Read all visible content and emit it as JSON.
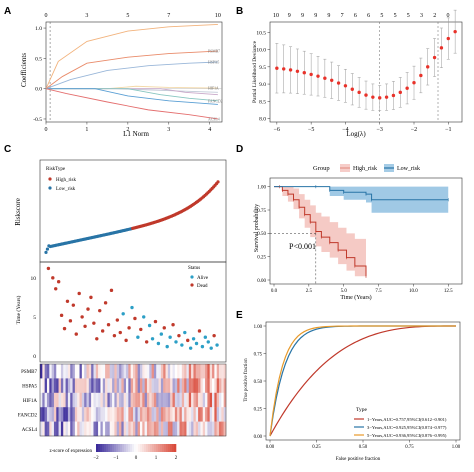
{
  "panel_labels": [
    "A",
    "B",
    "C",
    "D",
    "E"
  ],
  "chart_data": [
    {
      "panel": "A",
      "type": "line",
      "xlabel": "L1 Norm",
      "ylabel": "Coefficients",
      "x_ticks": [
        "0",
        "1",
        "2",
        "3",
        "4"
      ],
      "top_ticks": [
        "0",
        "3",
        "5",
        "7",
        "10"
      ],
      "y_ticks": [
        "-0.5",
        "0.0",
        "0.5",
        "1.0"
      ],
      "xlim": [
        0,
        4.3
      ],
      "ylim": [
        -0.55,
        1.1
      ],
      "vline_x": 0.1,
      "series": [
        {
          "name": "",
          "color": "#f2b37d",
          "points": [
            [
              0,
              0
            ],
            [
              0.3,
              0.45
            ],
            [
              1,
              0.78
            ],
            [
              2,
              0.95
            ],
            [
              3,
              1.02
            ],
            [
              4.2,
              1.06
            ]
          ]
        },
        {
          "name": "",
          "color": "#e98b6a",
          "points": [
            [
              0,
              0
            ],
            [
              0.4,
              0.2
            ],
            [
              1,
              0.42
            ],
            [
              2,
              0.52
            ],
            [
              3,
              0.58
            ],
            [
              4.2,
              0.62
            ]
          ]
        },
        {
          "name": "",
          "color": "#9ab7d9",
          "points": [
            [
              0,
              0
            ],
            [
              0.6,
              0.15
            ],
            [
              1.5,
              0.3
            ],
            [
              2.5,
              0.38
            ],
            [
              3.5,
              0.42
            ],
            [
              4.2,
              0.44
            ]
          ]
        },
        {
          "name": "",
          "color": "#f4d9a8",
          "points": [
            [
              0,
              0
            ],
            [
              1.5,
              0
            ],
            [
              2.2,
              0.04
            ],
            [
              3,
              0.02
            ],
            [
              4.2,
              0.01
            ]
          ]
        },
        {
          "name": "",
          "color": "#c3cbd8",
          "points": [
            [
              0,
              0
            ],
            [
              1.7,
              0
            ],
            [
              2.5,
              -0.02
            ],
            [
              3.3,
              -0.04
            ],
            [
              4.2,
              -0.06
            ]
          ]
        },
        {
          "name": "",
          "color": "#c9a9c9",
          "points": [
            [
              0,
              0
            ],
            [
              2.8,
              0
            ],
            [
              3.4,
              -0.06
            ],
            [
              4.2,
              -0.1
            ]
          ]
        },
        {
          "name": "",
          "color": "#88c6c0",
          "points": [
            [
              0,
              0
            ],
            [
              2,
              0
            ],
            [
              2.8,
              -0.1
            ],
            [
              3.5,
              -0.16
            ],
            [
              4.2,
              -0.2
            ]
          ]
        },
        {
          "name": "",
          "color": "#5a9fd4",
          "points": [
            [
              0,
              0
            ],
            [
              1.2,
              0
            ],
            [
              2,
              -0.12
            ],
            [
              3,
              -0.2
            ],
            [
              4.2,
              -0.26
            ]
          ]
        },
        {
          "name": "",
          "color": "#e46f6f",
          "points": [
            [
              0,
              0
            ],
            [
              0.5,
              -0.08
            ],
            [
              1.5,
              -0.22
            ],
            [
              2.5,
              -0.35
            ],
            [
              3.5,
              -0.43
            ],
            [
              4.2,
              -0.5
            ]
          ]
        }
      ],
      "right_labels": [
        "PSMB7",
        "HSPA5",
        "HIF1A",
        "FANCD2",
        "ACSL4"
      ]
    },
    {
      "panel": "B",
      "type": "scatter",
      "xlabel": "Log(λ)",
      "ylabel": "Partial Likelihood Deviance",
      "x_ticks": [
        "-6",
        "-5",
        "-4",
        "-3",
        "-2",
        "-1"
      ],
      "y_ticks": [
        "8.0",
        "8.5",
        "9.0",
        "9.5",
        "10.0",
        "10.5"
      ],
      "top_ticks": [
        "10",
        "9",
        "9",
        "9",
        "9",
        "7",
        "6",
        "6",
        "5",
        "5",
        "5",
        "3",
        "2",
        "0"
      ],
      "xlim": [
        -6.2,
        -0.6
      ],
      "ylim": [
        7.9,
        10.8
      ],
      "vlines": [
        -3.0,
        -1.3
      ],
      "points": [
        [
          -6.0,
          9.46
        ],
        [
          -5.8,
          9.44
        ],
        [
          -5.6,
          9.41
        ],
        [
          -5.4,
          9.37
        ],
        [
          -5.2,
          9.33
        ],
        [
          -5.0,
          9.28
        ],
        [
          -4.8,
          9.23
        ],
        [
          -4.6,
          9.17
        ],
        [
          -4.4,
          9.11
        ],
        [
          -4.2,
          9.03
        ],
        [
          -4.0,
          8.95
        ],
        [
          -3.8,
          8.85
        ],
        [
          -3.6,
          8.76
        ],
        [
          -3.4,
          8.68
        ],
        [
          -3.2,
          8.62
        ],
        [
          -3.0,
          8.6
        ],
        [
          -2.8,
          8.62
        ],
        [
          -2.6,
          8.67
        ],
        [
          -2.4,
          8.76
        ],
        [
          -2.2,
          8.88
        ],
        [
          -2.0,
          9.04
        ],
        [
          -1.8,
          9.25
        ],
        [
          -1.6,
          9.5
        ],
        [
          -1.4,
          9.77
        ],
        [
          -1.2,
          10.05
        ],
        [
          -1.0,
          10.32
        ],
        [
          -0.8,
          10.52
        ]
      ],
      "error": 0.72
    },
    {
      "panel": "C",
      "type": "scatter",
      "ylabel": "Riskscore",
      "legend_title": "RiskType",
      "series": [
        {
          "name": "High_risk",
          "color": "#c0392b"
        },
        {
          "name": "Low_risk",
          "color": "#2874a6"
        }
      ],
      "n_patients": 120,
      "split_index": 60
    },
    {
      "panel": "C",
      "type": "scatter",
      "ylabel": "Time (Years)",
      "legend_title": "Status",
      "y_ticks": [
        "0",
        "5",
        "10"
      ],
      "ylim": [
        0,
        11
      ],
      "series": [
        {
          "name": "Alive",
          "color": "#2c9fc6"
        },
        {
          "name": "Dead",
          "color": "#c0392b"
        }
      ],
      "points": [
        [
          3,
          11.2
        ],
        [
          6,
          10
        ],
        [
          8,
          8.6
        ],
        [
          10,
          9.5
        ],
        [
          12,
          5.2
        ],
        [
          14,
          3.5
        ],
        [
          16,
          7
        ],
        [
          18,
          4.5
        ],
        [
          20,
          6.5
        ],
        [
          22,
          2.8
        ],
        [
          24,
          8
        ],
        [
          26,
          5
        ],
        [
          28,
          3.8
        ],
        [
          30,
          6
        ],
        [
          32,
          7.5
        ],
        [
          34,
          4.2
        ],
        [
          36,
          2.2
        ],
        [
          38,
          5.8
        ],
        [
          40,
          3.2
        ],
        [
          42,
          6.8
        ],
        [
          44,
          4
        ],
        [
          46,
          8.4
        ],
        [
          48,
          2.6
        ],
        [
          50,
          4.6
        ],
        [
          52,
          3
        ],
        [
          54,
          5.4
        ],
        [
          56,
          2
        ],
        [
          58,
          3.6
        ],
        [
          60,
          6.2
        ],
        [
          62,
          4.8
        ],
        [
          64,
          2.4
        ],
        [
          66,
          3.4
        ],
        [
          68,
          5
        ],
        [
          70,
          1.8
        ],
        [
          72,
          3.9
        ],
        [
          74,
          2.2
        ],
        [
          76,
          4.4
        ],
        [
          78,
          1.6
        ],
        [
          80,
          2.8
        ],
        [
          82,
          3.6
        ],
        [
          84,
          1.2
        ],
        [
          86,
          2.4
        ],
        [
          88,
          4
        ],
        [
          90,
          1.8
        ],
        [
          92,
          2.6
        ],
        [
          94,
          1.4
        ],
        [
          96,
          3
        ],
        [
          98,
          2
        ],
        [
          100,
          1
        ],
        [
          102,
          2.2
        ],
        [
          104,
          1.6
        ],
        [
          106,
          3.2
        ],
        [
          108,
          1.2
        ],
        [
          110,
          2.4
        ],
        [
          112,
          1.8
        ],
        [
          114,
          1
        ],
        [
          116,
          2.6
        ],
        [
          118,
          1.4
        ]
      ],
      "dead_flags": [
        1,
        1,
        1,
        1,
        1,
        1,
        1,
        1,
        1,
        1,
        1,
        1,
        1,
        1,
        1,
        1,
        1,
        1,
        1,
        1,
        1,
        1,
        1,
        1,
        1,
        0,
        1,
        1,
        0,
        1,
        0,
        1,
        0,
        1,
        0,
        0,
        1,
        0,
        0,
        1,
        0,
        0,
        1,
        0,
        1,
        0,
        0,
        1,
        0,
        0,
        0,
        1,
        0,
        0,
        0,
        0,
        1,
        0
      ]
    },
    {
      "panel": "C",
      "type": "heatmap",
      "rows": [
        "PSMB7",
        "HSPA5",
        "HIF1A",
        "FANCD2",
        "ACSL4"
      ],
      "colorbar_label": "z-score of expression",
      "colorbar_ticks": [
        "-2",
        "-1",
        "0",
        "1",
        "2"
      ],
      "colors": {
        "low": "#3b2b9a",
        "mid": "#ffffff",
        "high": "#d94a3a"
      }
    },
    {
      "panel": "D",
      "type": "line",
      "legend_title": "Group",
      "series": [
        {
          "name": "High_risk",
          "color": "#c0392b",
          "fill": "#f2b8b2",
          "points": [
            [
              0,
              1
            ],
            [
              0.4,
              1
            ],
            [
              0.6,
              0.96
            ],
            [
              1,
              0.92
            ],
            [
              1.4,
              0.86
            ],
            [
              1.8,
              0.78
            ],
            [
              2.2,
              0.7
            ],
            [
              2.6,
              0.62
            ],
            [
              3,
              0.52
            ],
            [
              3.4,
              0.46
            ],
            [
              4,
              0.4
            ],
            [
              4.6,
              0.32
            ],
            [
              5.2,
              0.24
            ],
            [
              5.8,
              0.15
            ],
            [
              6.6,
              0.04
            ]
          ],
          "upper": [
            1,
            1,
            1,
            1,
            0.98,
            0.92,
            0.86,
            0.8,
            0.72,
            0.68,
            0.62,
            0.56,
            0.5,
            0.44,
            0.34
          ],
          "lower": [
            1,
            1,
            0.9,
            0.84,
            0.76,
            0.66,
            0.56,
            0.46,
            0.36,
            0.3,
            0.24,
            0.17,
            0.1,
            0.04,
            0.0
          ]
        },
        {
          "name": "Low_risk",
          "color": "#2874a6",
          "fill": "#8fbfe0",
          "points": [
            [
              0,
              1
            ],
            [
              3,
              1
            ],
            [
              4,
              0.96
            ],
            [
              5,
              0.94
            ],
            [
              6.6,
              0.92
            ],
            [
              7,
              0.86
            ],
            [
              12.5,
              0.86
            ]
          ],
          "upper": [
            1,
            1,
            1,
            1,
            1,
            1,
            1
          ],
          "lower": [
            1,
            1,
            0.9,
            0.86,
            0.83,
            0.72,
            0.72
          ]
        }
      ],
      "pvalue": "P<0.001",
      "xlabel": "Time (Years)",
      "ylabel": "Survival probability",
      "x_ticks": [
        "0.0",
        "2.5",
        "5.0",
        "7.5",
        "10.0",
        "12.5"
      ],
      "y_ticks": [
        "0.00",
        "0.25",
        "0.50",
        "0.75",
        "1.00"
      ],
      "xlim": [
        0,
        13.2
      ],
      "ylim": [
        0,
        1.05
      ],
      "median_time": 3.0
    },
    {
      "panel": "E",
      "type": "line",
      "xlabel": "False positive fraction",
      "ylabel": "True positive fraction",
      "x_ticks": [
        "0.00",
        "0.25",
        "0.50",
        "0.75",
        "1.00"
      ],
      "y_ticks": [
        "0.00",
        "0.25",
        "0.50",
        "0.75",
        "1.00"
      ],
      "xlim": [
        0,
        1
      ],
      "ylim": [
        0,
        1
      ],
      "legend_title": "Type",
      "series": [
        {
          "name": "1−Years,AUC=0.757,95%CI(0.612−0.901)",
          "color": "#c0392b",
          "auc": 0.757
        },
        {
          "name": "3−Years,AUC=0.925,95%CI(0.874−0.977)",
          "color": "#2874a6",
          "auc": 0.925
        },
        {
          "name": "5−Years,AUC=0.936,95%CI(0.876−0.995)",
          "color": "#e89a2a",
          "auc": 0.936
        }
      ]
    }
  ]
}
